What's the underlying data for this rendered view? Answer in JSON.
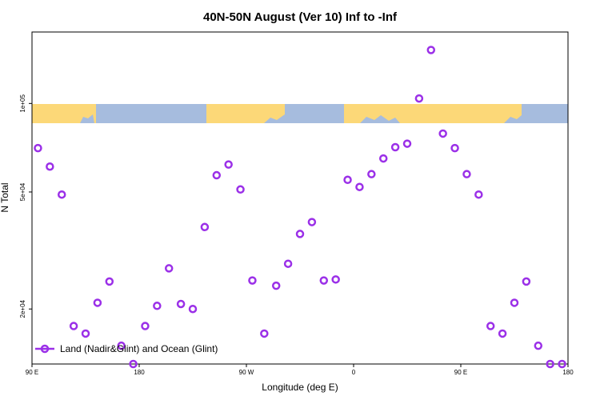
{
  "chart_data": {
    "type": "scatter",
    "title": "40N-50N August (Ver 10)   Inf to -Inf",
    "xlabel": "Longitude (deg E)",
    "ylabel": "N Total",
    "y_scale": "log",
    "xlim": [
      90,
      450
    ],
    "ylim": [
      13000,
      175000
    ],
    "x_ticks": [
      {
        "value": 90,
        "label": "90 E"
      },
      {
        "value": 162,
        "label": "180"
      },
      {
        "value": 234,
        "label": "90 W"
      },
      {
        "value": 306,
        "label": "0"
      },
      {
        "value": 378,
        "label": "90 E"
      },
      {
        "value": 450,
        "label": "180"
      }
    ],
    "y_ticks": [
      {
        "value": 20000,
        "label": "2e+04"
      },
      {
        "value": 50000,
        "label": "5e+04"
      },
      {
        "value": 100000,
        "label": "1e+05"
      }
    ],
    "legend": {
      "position": "bottom-left",
      "label": "Land (Nadir&Glint) and Ocean (Glint)"
    },
    "background_map": {
      "kind": "land-ocean strip",
      "land_color": "#fcd878",
      "ocean_color": "#a6bcde"
    },
    "series": [
      {
        "name": "Land (Nadir&Glint) and Ocean (Glint)",
        "color": "#9b30e8",
        "marker": "open-circle",
        "x": [
          94,
          102,
          110,
          118,
          126,
          134,
          142,
          150,
          158,
          166,
          174,
          182,
          190,
          198,
          206,
          214,
          222,
          230,
          238,
          246,
          254,
          262,
          270,
          278,
          286,
          294,
          302,
          310,
          318,
          326,
          334,
          342,
          350,
          358,
          366,
          374,
          382,
          390,
          398,
          406,
          414,
          422,
          430,
          438,
          446
        ],
        "values": [
          70500,
          61000,
          49000,
          17500,
          16500,
          21000,
          24800,
          15000,
          13000,
          17500,
          20500,
          27500,
          20800,
          20000,
          38000,
          57000,
          62000,
          51000,
          25000,
          16500,
          24000,
          28500,
          36000,
          39500,
          25000,
          25200,
          55000,
          52000,
          57500,
          65000,
          71000,
          73000,
          104000,
          152000,
          79000,
          70500,
          57500,
          49000,
          17500,
          16500,
          21000,
          24800,
          15000,
          13000,
          13000
        ]
      }
    ]
  }
}
